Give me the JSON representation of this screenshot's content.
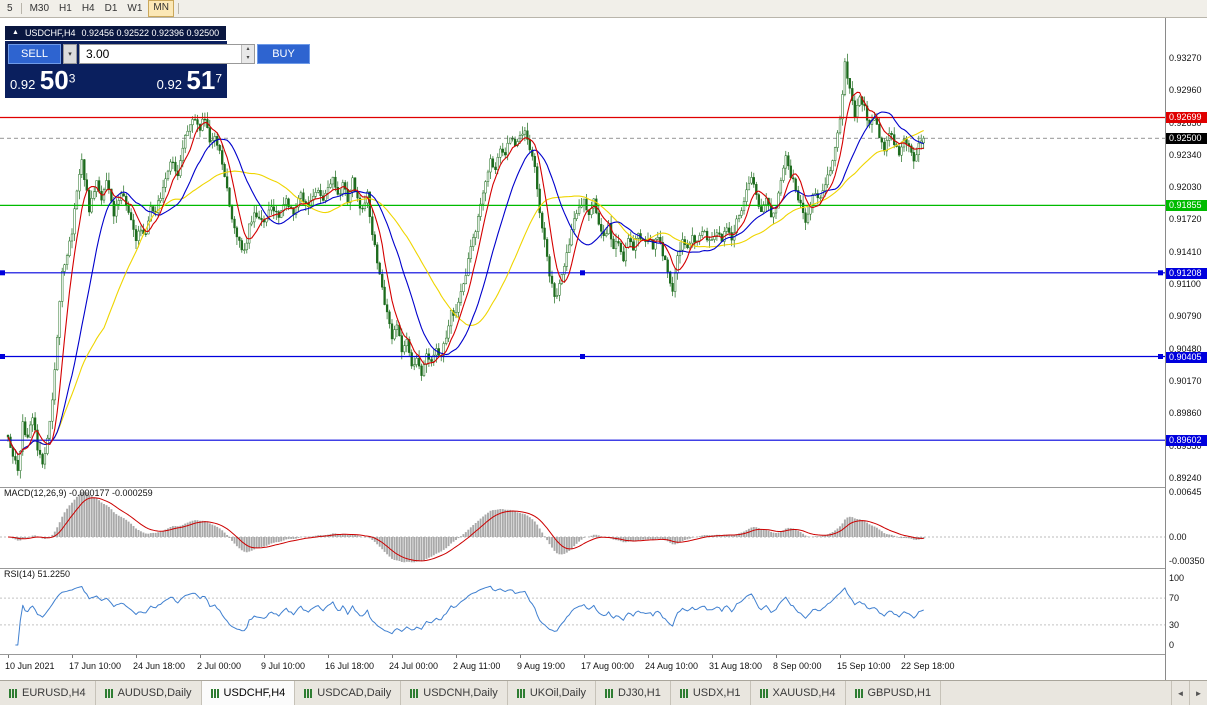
{
  "toolbar": {
    "timeframes": [
      "5",
      "M30",
      "H1",
      "H4",
      "D1",
      "W1",
      "MN"
    ],
    "active": "MN"
  },
  "chart_header": {
    "collapse_icon": "▲",
    "symbol": "USDCHF,H4",
    "ohlc": "0.92456 0.92522 0.92396 0.92500"
  },
  "trade_panel": {
    "sell_label": "SELL",
    "buy_label": "BUY",
    "volume": "3.00",
    "sell_price": {
      "main": "0.92",
      "big": "50",
      "sup": "3"
    },
    "buy_price": {
      "main": "0.92",
      "big": "51",
      "sup": "7"
    }
  },
  "price_axis": {
    "ticks": [
      "0.93270",
      "0.92960",
      "0.92650",
      "0.92340",
      "0.92030",
      "0.91720",
      "0.91410",
      "0.91100",
      "0.90790",
      "0.90480",
      "0.90170",
      "0.89860",
      "0.89550",
      "0.89240"
    ],
    "lines": [
      {
        "label": "0.92699",
        "value": 0.92699,
        "color": "#e00000",
        "selected": false
      },
      {
        "label": "0.91855",
        "value": 0.91855,
        "color": "#00bb00",
        "selected": false
      },
      {
        "label": "0.91208",
        "value": 0.91208,
        "color": "#0000dd",
        "selected": true
      },
      {
        "label": "0.90405",
        "value": 0.90405,
        "color": "#0000dd",
        "selected": true
      },
      {
        "label": "0.89602",
        "value": 0.89602,
        "color": "#0000dd",
        "selected": false
      }
    ],
    "current": {
      "label": "0.92500",
      "value": 0.925,
      "bg": "#000000"
    }
  },
  "macd": {
    "title": "MACD(12,26,9) -0.000177 -0.000259",
    "axis": [
      {
        "label": "0.00645",
        "value": 0.00645
      },
      {
        "label": "0.00",
        "value": 0
      },
      {
        "label": "-0.00350",
        "value": -0.0035
      }
    ]
  },
  "rsi": {
    "title": "RSI(14) 51.2250",
    "axis": [
      {
        "label": "100",
        "value": 100
      },
      {
        "label": "70",
        "value": 70
      },
      {
        "label": "30",
        "value": 30
      },
      {
        "label": "0",
        "value": 0
      }
    ],
    "levels": [
      70,
      30
    ]
  },
  "time_axis": [
    "10 Jun 2021",
    "17 Jun 10:00",
    "24 Jun 18:00",
    "2 Jul 00:00",
    "9 Jul 10:00",
    "16 Jul 18:00",
    "24 Jul 00:00",
    "2 Aug 11:00",
    "9 Aug 19:00",
    "17 Aug 00:00",
    "24 Aug 10:00",
    "31 Aug 18:00",
    "8 Sep 00:00",
    "15 Sep 10:00",
    "22 Sep 18:00"
  ],
  "tabs": {
    "items": [
      "EURUSD,H4",
      "AUDUSD,Daily",
      "USDCHF,H4",
      "USDCAD,Daily",
      "USDCNH,Daily",
      "UKOil,Daily",
      "DJ30,H1",
      "USDX,H1",
      "XAUUSD,H4",
      "GBPUSD,H1"
    ],
    "active": "USDCHF,H4",
    "scroll_left_icon": "◄",
    "scroll_right_icon": "►"
  },
  "colors": {
    "candle": "#1c6b1c",
    "candle_bull_fill": "#ffffff",
    "ma_red": "#d40000",
    "ma_blue": "#0000cc",
    "ma_yellow": "#efd500",
    "macd_hist": "#a9a9a9",
    "macd_signal": "#cc0000",
    "rsi_line": "#4080d0",
    "panel_navy": "#0a1f5e",
    "button_blue": "#2e64d0"
  },
  "chart_data": {
    "type": "candlestick",
    "symbol": "USDCHF",
    "timeframe": "H4",
    "bars": 373,
    "ylim": [
      0.8924,
      0.9359
    ],
    "ohlc_current": {
      "open": 0.92456,
      "high": 0.92522,
      "low": 0.92396,
      "close": 0.925
    },
    "price_path": [
      [
        0,
        0.8965
      ],
      [
        2,
        0.8945
      ],
      [
        4,
        0.893
      ],
      [
        6,
        0.8975
      ],
      [
        8,
        0.896
      ],
      [
        10,
        0.8985
      ],
      [
        12,
        0.895
      ],
      [
        14,
        0.894
      ],
      [
        16,
        0.896
      ],
      [
        18,
        0.9
      ],
      [
        22,
        0.912
      ],
      [
        26,
        0.916
      ],
      [
        28,
        0.92
      ],
      [
        30,
        0.923
      ],
      [
        33,
        0.918
      ],
      [
        36,
        0.921
      ],
      [
        38,
        0.919
      ],
      [
        40,
        0.921
      ],
      [
        43,
        0.9175
      ],
      [
        46,
        0.92
      ],
      [
        48,
        0.9185
      ],
      [
        50,
        0.917
      ],
      [
        52,
        0.915
      ],
      [
        54,
        0.9165
      ],
      [
        56,
        0.9155
      ],
      [
        58,
        0.9185
      ],
      [
        60,
        0.918
      ],
      [
        63,
        0.92
      ],
      [
        66,
        0.923
      ],
      [
        69,
        0.9215
      ],
      [
        72,
        0.925
      ],
      [
        75,
        0.927
      ],
      [
        78,
        0.926
      ],
      [
        80,
        0.927
      ],
      [
        82,
        0.9245
      ],
      [
        84,
        0.925
      ],
      [
        86,
        0.924
      ],
      [
        88,
        0.9215
      ],
      [
        91,
        0.917
      ],
      [
        94,
        0.915
      ],
      [
        96,
        0.914
      ],
      [
        98,
        0.9165
      ],
      [
        100,
        0.918
      ],
      [
        104,
        0.917
      ],
      [
        107,
        0.9185
      ],
      [
        110,
        0.9175
      ],
      [
        113,
        0.919
      ],
      [
        116,
        0.918
      ],
      [
        119,
        0.9195
      ],
      [
        122,
        0.9185
      ],
      [
        125,
        0.92
      ],
      [
        128,
        0.919
      ],
      [
        130,
        0.92
      ],
      [
        132,
        0.9215
      ],
      [
        134,
        0.9195
      ],
      [
        136,
        0.9205
      ],
      [
        138,
        0.919
      ],
      [
        140,
        0.921
      ],
      [
        143,
        0.918
      ],
      [
        146,
        0.9195
      ],
      [
        148,
        0.916
      ],
      [
        151,
        0.912
      ],
      [
        154,
        0.908
      ],
      [
        156,
        0.906
      ],
      [
        158,
        0.907
      ],
      [
        160,
        0.9045
      ],
      [
        162,
        0.9055
      ],
      [
        164,
        0.903
      ],
      [
        166,
        0.904
      ],
      [
        168,
        0.9022
      ],
      [
        170,
        0.9045
      ],
      [
        172,
        0.9035
      ],
      [
        174,
        0.905
      ],
      [
        176,
        0.904
      ],
      [
        178,
        0.906
      ],
      [
        180,
        0.9085
      ],
      [
        182,
        0.908
      ],
      [
        184,
        0.91
      ],
      [
        186,
        0.912
      ],
      [
        188,
        0.9145
      ],
      [
        190,
        0.916
      ],
      [
        192,
        0.9185
      ],
      [
        194,
        0.921
      ],
      [
        196,
        0.923
      ],
      [
        198,
        0.922
      ],
      [
        200,
        0.924
      ],
      [
        202,
        0.9235
      ],
      [
        204,
        0.925
      ],
      [
        206,
        0.9245
      ],
      [
        208,
        0.925
      ],
      [
        210,
        0.9255
      ],
      [
        212,
        0.924
      ],
      [
        214,
        0.9225
      ],
      [
        216,
        0.918
      ],
      [
        218,
        0.915
      ],
      [
        220,
        0.912
      ],
      [
        222,
        0.9095
      ],
      [
        224,
        0.911
      ],
      [
        226,
        0.913
      ],
      [
        228,
        0.915
      ],
      [
        230,
        0.917
      ],
      [
        232,
        0.9185
      ],
      [
        234,
        0.919
      ],
      [
        236,
        0.9175
      ],
      [
        238,
        0.919
      ],
      [
        240,
        0.917
      ],
      [
        242,
        0.9155
      ],
      [
        244,
        0.9165
      ],
      [
        246,
        0.9145
      ],
      [
        248,
        0.915
      ],
      [
        250,
        0.9135
      ],
      [
        252,
        0.9155
      ],
      [
        254,
        0.9145
      ],
      [
        256,
        0.916
      ],
      [
        258,
        0.915
      ],
      [
        260,
        0.9155
      ],
      [
        262,
        0.9145
      ],
      [
        264,
        0.9155
      ],
      [
        266,
        0.914
      ],
      [
        268,
        0.912
      ],
      [
        270,
        0.9105
      ],
      [
        272,
        0.914
      ],
      [
        274,
        0.915
      ],
      [
        276,
        0.9145
      ],
      [
        278,
        0.9155
      ],
      [
        280,
        0.915
      ],
      [
        282,
        0.916
      ],
      [
        284,
        0.9155
      ],
      [
        286,
        0.915
      ],
      [
        288,
        0.916
      ],
      [
        290,
        0.915
      ],
      [
        292,
        0.9165
      ],
      [
        294,
        0.9155
      ],
      [
        296,
        0.917
      ],
      [
        298,
        0.918
      ],
      [
        300,
        0.92
      ],
      [
        302,
        0.9215
      ],
      [
        304,
        0.9195
      ],
      [
        306,
        0.918
      ],
      [
        308,
        0.919
      ],
      [
        310,
        0.9175
      ],
      [
        312,
        0.9185
      ],
      [
        314,
        0.921
      ],
      [
        316,
        0.923
      ],
      [
        318,
        0.9215
      ],
      [
        320,
        0.92
      ],
      [
        322,
        0.9185
      ],
      [
        324,
        0.917
      ],
      [
        326,
        0.9185
      ],
      [
        328,
        0.92
      ],
      [
        330,
        0.919
      ],
      [
        332,
        0.9205
      ],
      [
        334,
        0.922
      ],
      [
        336,
        0.924
      ],
      [
        338,
        0.927
      ],
      [
        340,
        0.932
      ],
      [
        342,
        0.93
      ],
      [
        344,
        0.927
      ],
      [
        346,
        0.929
      ],
      [
        348,
        0.928
      ],
      [
        350,
        0.926
      ],
      [
        352,
        0.927
      ],
      [
        354,
        0.925
      ],
      [
        356,
        0.924
      ],
      [
        358,
        0.9255
      ],
      [
        360,
        0.9245
      ],
      [
        362,
        0.9235
      ],
      [
        364,
        0.925
      ],
      [
        366,
        0.924
      ],
      [
        368,
        0.923
      ],
      [
        370,
        0.9245
      ],
      [
        372,
        0.925
      ]
    ],
    "moving_averages": [
      {
        "color_key": "ma_red",
        "period": 7
      },
      {
        "color_key": "ma_blue",
        "period": 20
      },
      {
        "color_key": "ma_yellow",
        "period": 40
      }
    ],
    "macd_params": [
      12,
      26,
      9
    ],
    "rsi_period": 14
  }
}
